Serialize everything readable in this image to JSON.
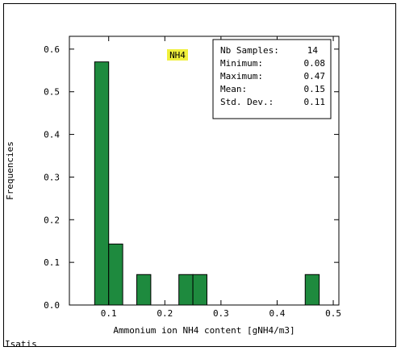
{
  "chart_data": {
    "type": "bar",
    "variant": "histogram",
    "xlabel": "Ammonium ion NH4 content [gNH4/m3]",
    "ylabel": "Frequencies",
    "xlim": [
      0.03,
      0.51
    ],
    "ylim": [
      0.0,
      0.63
    ],
    "xticks": [
      0.1,
      0.2,
      0.3,
      0.4,
      0.5
    ],
    "xtick_labels": [
      "0.1",
      "0.2",
      "0.3",
      "0.4",
      "0.5"
    ],
    "yticks": [
      0.0,
      0.1,
      0.2,
      0.3,
      0.4,
      0.5,
      0.6
    ],
    "ytick_labels": [
      "0.0",
      "0.1",
      "0.2",
      "0.3",
      "0.4",
      "0.5",
      "0.6"
    ],
    "bins": [
      {
        "x0": 0.075,
        "x1": 0.1,
        "value": 0.57
      },
      {
        "x0": 0.1,
        "x1": 0.125,
        "value": 0.143
      },
      {
        "x0": 0.125,
        "x1": 0.15,
        "value": 0.0
      },
      {
        "x0": 0.15,
        "x1": 0.175,
        "value": 0.0714
      },
      {
        "x0": 0.175,
        "x1": 0.2,
        "value": 0.0
      },
      {
        "x0": 0.2,
        "x1": 0.225,
        "value": 0.0
      },
      {
        "x0": 0.225,
        "x1": 0.25,
        "value": 0.0714
      },
      {
        "x0": 0.25,
        "x1": 0.275,
        "value": 0.0714
      },
      {
        "x0": 0.275,
        "x1": 0.3,
        "value": 0.0
      },
      {
        "x0": 0.3,
        "x1": 0.325,
        "value": 0.0
      },
      {
        "x0": 0.325,
        "x1": 0.35,
        "value": 0.0
      },
      {
        "x0": 0.35,
        "x1": 0.375,
        "value": 0.0
      },
      {
        "x0": 0.375,
        "x1": 0.4,
        "value": 0.0
      },
      {
        "x0": 0.4,
        "x1": 0.425,
        "value": 0.0
      },
      {
        "x0": 0.425,
        "x1": 0.45,
        "value": 0.0
      },
      {
        "x0": 0.45,
        "x1": 0.475,
        "value": 0.0714
      }
    ],
    "variable_tag": "NH4",
    "stats_box": [
      {
        "label": "Nb Samples:",
        "value": "14"
      },
      {
        "label": "Minimum:",
        "value": "0.08"
      },
      {
        "label": "Maximum:",
        "value": "0.47"
      },
      {
        "label": "Mean:",
        "value": "0.15"
      },
      {
        "label": "Std. Dev.:",
        "value": "0.11"
      }
    ],
    "colors": {
      "bar_fill": "#1e8a3e",
      "bar_edge": "#000000",
      "tag_bg": "#f0f03c",
      "axis": "#000000"
    },
    "grid": false
  },
  "footer": {
    "software": "Isatis"
  }
}
